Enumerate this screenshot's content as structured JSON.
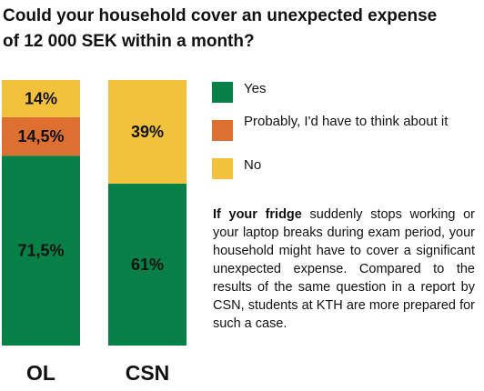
{
  "title_lines": [
    "Could your household cover an unexpected expense",
    "of 12 000 SEK within a month?"
  ],
  "legend": [
    {
      "label": "Yes",
      "color": "#068047"
    },
    {
      "label": "Probably, I'd have to think about it",
      "color": "#dd7031"
    },
    {
      "label": "No",
      "color": "#f3c23d"
    }
  ],
  "description": {
    "bold": "If your fridge",
    "text": " suddenly stops working or your laptop breaks during exam period, your household might have to cover a significant unexpected expense. Compared to the results of the same question in a report by CSN, students at KTH are more prepared for such a case."
  },
  "chart_data": {
    "type": "bar",
    "stacked": true,
    "categories": [
      "OL",
      "CSN"
    ],
    "series": [
      {
        "name": "Yes",
        "values": [
          71.5,
          61
        ],
        "labels": [
          "71,5%",
          "61%"
        ],
        "color": "#068047"
      },
      {
        "name": "Probably, I'd have to think about it",
        "values": [
          14.5,
          0
        ],
        "labels": [
          "14,5%",
          ""
        ],
        "color": "#dd7031"
      },
      {
        "name": "No",
        "values": [
          14,
          39
        ],
        "labels": [
          "14%",
          "39%"
        ],
        "color": "#f3c23d"
      }
    ],
    "ylim": [
      0,
      100
    ],
    "grid": false,
    "legend_position": "right"
  }
}
